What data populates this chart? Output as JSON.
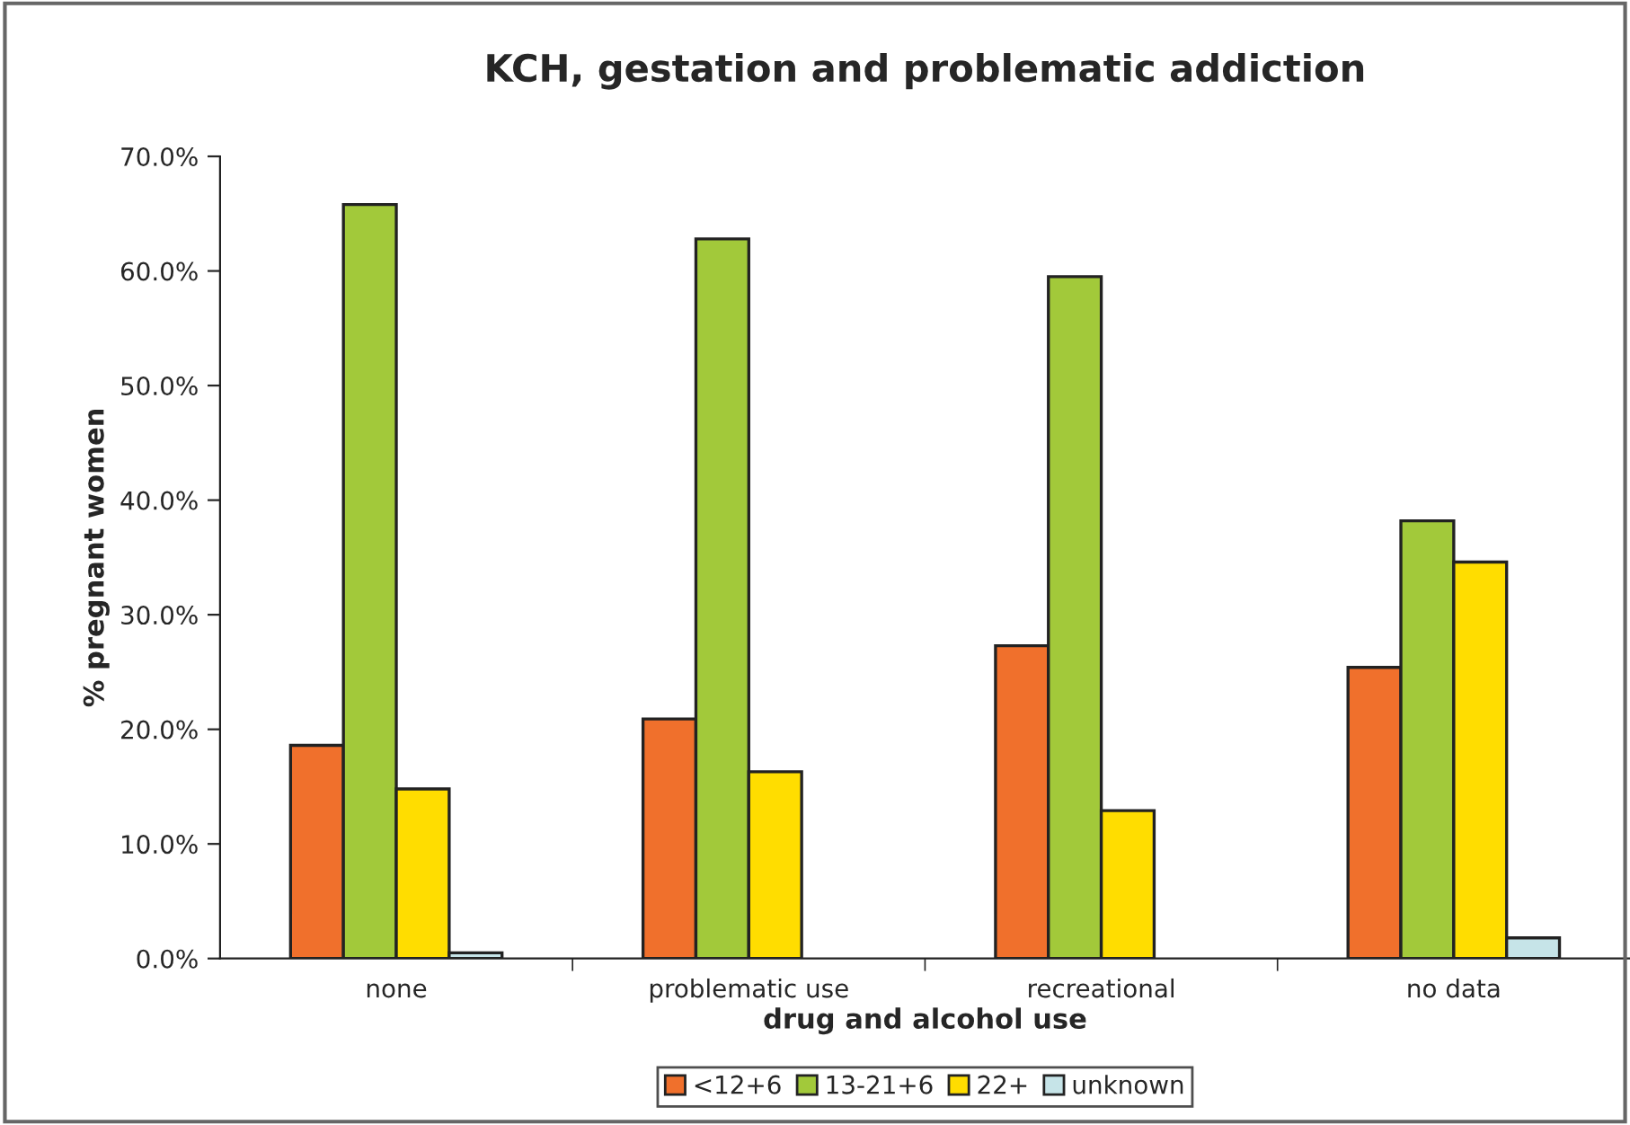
{
  "chart_data": {
    "type": "bar",
    "title": "KCH, gestation and problematic addiction",
    "xlabel": "drug and alcohol use",
    "ylabel": "% pregnant women",
    "categories": [
      "none",
      "problematic use",
      "recreational",
      "no data"
    ],
    "series": [
      {
        "name": "<12+6",
        "color": "#f0702c",
        "values": [
          18.6,
          20.9,
          27.3,
          25.4
        ]
      },
      {
        "name": "13-21+6",
        "color": "#a2c93a",
        "values": [
          65.8,
          62.8,
          59.5,
          38.2
        ]
      },
      {
        "name": "22+",
        "color": "#ffdd00",
        "values": [
          14.8,
          16.3,
          12.9,
          34.6
        ]
      },
      {
        "name": "unknown",
        "color": "#c6e4e8",
        "values": [
          0.5,
          null,
          null,
          1.8
        ]
      }
    ],
    "ylim": [
      0,
      70
    ],
    "yticks": [
      {
        "value": 0,
        "label": "0.0%"
      },
      {
        "value": 10,
        "label": "10.0%"
      },
      {
        "value": 20,
        "label": "20.0%"
      },
      {
        "value": 30,
        "label": "30.0%"
      },
      {
        "value": 40,
        "label": "40.0%"
      },
      {
        "value": 50,
        "label": "50.0%"
      },
      {
        "value": 60,
        "label": "60.0%"
      },
      {
        "value": 70,
        "label": "70.0%"
      }
    ],
    "grid": false,
    "legend": "bottom"
  }
}
